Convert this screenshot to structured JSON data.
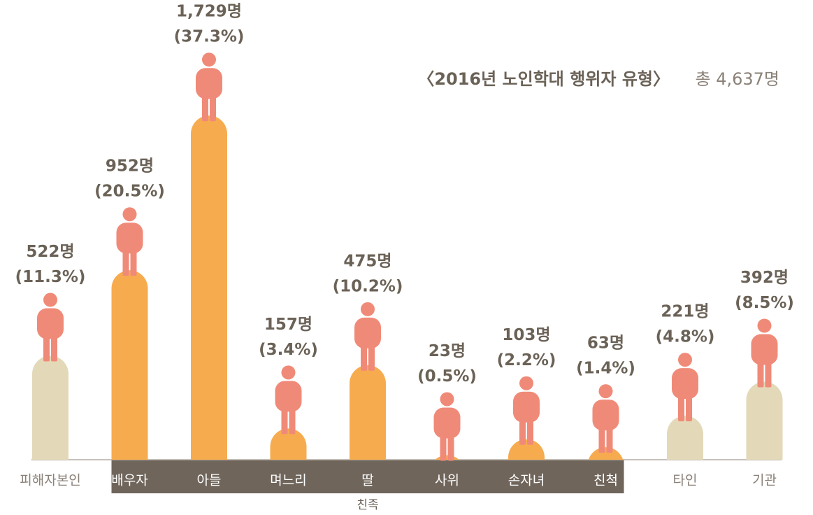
{
  "chart_data": {
    "type": "bar",
    "title": "〈2016년 노인학대 행위자 유형〉",
    "subtitle": "총 4,637명",
    "categories": [
      "피해자본인",
      "배우자",
      "아들",
      "며느리",
      "딸",
      "사위",
      "손자녀",
      "친척",
      "타인",
      "기관"
    ],
    "values": [
      522,
      952,
      1729,
      157,
      475,
      23,
      103,
      63,
      221,
      392
    ],
    "value_labels": [
      "522명",
      "952명",
      "1,729명",
      "157명",
      "475명",
      "23명",
      "103명",
      "63명",
      "221명",
      "392명"
    ],
    "shares": [
      11.3,
      20.5,
      37.3,
      3.4,
      10.2,
      0.5,
      2.2,
      1.4,
      4.8,
      8.5
    ],
    "share_labels": [
      "(11.3%)",
      "(20.5%)",
      "(37.3%)",
      "(3.4%)",
      "(10.2%)",
      "(0.5%)",
      "(2.2%)",
      "(1.4%)",
      "(4.8%)",
      "(8.5%)"
    ],
    "colors": [
      "#e3d9b8",
      "#f7ab4f",
      "#f7ab4f",
      "#f7ab4f",
      "#f7ab4f",
      "#f7ab4f",
      "#f7ab4f",
      "#f7ab4f",
      "#e3d9b8",
      "#e3d9b8"
    ],
    "group": {
      "label": "친족",
      "from": "배우자",
      "to": "친척",
      "color": "#6f655b"
    },
    "icon_color": "#f08a78",
    "ylim": [
      0,
      1800
    ]
  }
}
